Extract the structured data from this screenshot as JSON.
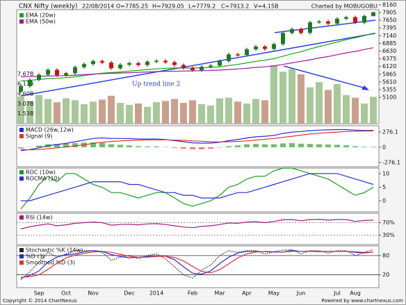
{
  "chart_data": [
    {
      "type": "candlestick",
      "title": "CNX Nifty (weekly)",
      "date": "22/08/2014",
      "quote": [
        "O=7785.25",
        "H=7929.05",
        "L=7779.2",
        "C=7913.2",
        "V=4.15B"
      ],
      "credit": "Charted by MOBUGOBU",
      "annotation": "Up trend line 2",
      "categories": [
        null,
        null,
        "Sep",
        null,
        null,
        "Oct",
        null,
        null,
        "Nov",
        null,
        null,
        null,
        "Dec",
        null,
        null,
        "2014",
        null,
        null,
        null,
        "Feb",
        null,
        null,
        "Mar",
        null,
        null,
        "Apr",
        null,
        null,
        "May",
        null,
        null,
        "Jun",
        null,
        null,
        null,
        "Jul",
        null,
        "Aug",
        null,
        null
      ],
      "open": [
        5290,
        5470,
        5680,
        5850,
        6010,
        5830,
        5900,
        6100,
        6200,
        6300,
        6250,
        6060,
        6180,
        6230,
        6170,
        6280,
        6310,
        6260,
        6170,
        6070,
        6000,
        6110,
        6150,
        6300,
        6520,
        6500,
        6690,
        6780,
        6700,
        6860,
        7230,
        7360,
        7230,
        7580,
        7610,
        7540,
        7700,
        7750,
        7570,
        7785.25
      ],
      "high": [
        5520,
        5730,
        5900,
        6060,
        6060,
        5950,
        6150,
        6250,
        6350,
        6350,
        6300,
        6230,
        6280,
        6280,
        6330,
        6360,
        6360,
        6310,
        6220,
        6120,
        6160,
        6200,
        6350,
        6570,
        6570,
        6740,
        6830,
        6830,
        6910,
        7280,
        7410,
        7410,
        7630,
        7660,
        7660,
        7750,
        7800,
        7800,
        7840,
        7929.05
      ],
      "low": [
        5240,
        5420,
        5630,
        5800,
        5780,
        5780,
        5850,
        6050,
        6150,
        6200,
        6010,
        6010,
        6130,
        6120,
        6120,
        6230,
        6210,
        6120,
        6020,
        5950,
        5950,
        6060,
        6100,
        6250,
        6450,
        6450,
        6640,
        6650,
        6650,
        6810,
        7180,
        7180,
        7180,
        7530,
        7490,
        7490,
        7650,
        7520,
        7520,
        7779.2
      ],
      "close": [
        5470,
        5680,
        5850,
        6010,
        5830,
        5900,
        6100,
        6200,
        6300,
        6250,
        6060,
        6180,
        6230,
        6170,
        6280,
        6310,
        6260,
        6170,
        6070,
        6000,
        6110,
        6150,
        6300,
        6520,
        6500,
        6690,
        6780,
        6700,
        6860,
        7230,
        7360,
        7230,
        7580,
        7610,
        7540,
        7700,
        7750,
        7570,
        7790,
        7913.2
      ],
      "up_color": "#1f7a1f",
      "down_color": "#d01010",
      "series": [
        {
          "name": "EMA (20w)",
          "color": "#16a516",
          "values": [
            5650,
            5660,
            5690,
            5720,
            5730,
            5750,
            5780,
            5820,
            5860,
            5900,
            5920,
            5940,
            5970,
            5990,
            6020,
            6040,
            6060,
            6070,
            6070,
            6070,
            6080,
            6090,
            6110,
            6150,
            6190,
            6240,
            6290,
            6330,
            6380,
            6460,
            6540,
            6610,
            6700,
            6780,
            6850,
            6930,
            7010,
            7070,
            7140,
            7220
          ]
        },
        {
          "name": "EMA (50w)",
          "color": "#9b1a9b",
          "values": [
            5780,
            5785,
            5795,
            5805,
            5810,
            5820,
            5835,
            5850,
            5870,
            5885,
            5895,
            5905,
            5915,
            5925,
            5940,
            5950,
            5960,
            5965,
            5970,
            5975,
            5980,
            5990,
            6000,
            6020,
            6040,
            6060,
            6090,
            6110,
            6140,
            6190,
            6240,
            6290,
            6340,
            6400,
            6450,
            6510,
            6570,
            6620,
            6680,
            6740
          ]
        }
      ],
      "ylim": [
        4230,
        8250
      ],
      "yticks": [
        8160,
        7905,
        7650,
        7395,
        7140,
        6885,
        6630,
        6375,
        6120,
        5865,
        5610,
        5355,
        5100
      ],
      "volume": {
        "values": [
          4.2,
          3.5,
          4.4,
          3.8,
          3.3,
          3.9,
          3.6,
          3.0,
          3.4,
          3.7,
          4.3,
          3.2,
          2.9,
          3.1,
          2.6,
          3.3,
          3.5,
          3.8,
          3.2,
          3.6,
          3.0,
          2.8,
          3.9,
          4.0,
          3.4,
          3.1,
          3.8,
          3.6,
          9.0,
          8.0,
          8.4,
          7.6,
          5.6,
          6.4,
          5.2,
          6.1,
          4.4,
          4.0,
          3.1,
          4.15
        ],
        "up_color": "#a8c89a",
        "down_color": "#c9a08e",
        "ylim": [
          0,
          9.2
        ],
        "yticks": [
          {
            "value": 7.67,
            "label": "7.67B"
          },
          {
            "value": 6.13,
            "label": "6.13B"
          },
          {
            "value": 4.6,
            "label": "4.60B"
          },
          {
            "value": 3.07,
            "label": "3.07B"
          },
          {
            "value": 1.53,
            "label": "1.53B"
          }
        ]
      }
    },
    {
      "type": "line",
      "series": [
        {
          "name": "MACD (26w,12w)",
          "color": "#2a2ad0",
          "values": [
            -60,
            -40,
            -10,
            30,
            50,
            70,
            100,
            130,
            160,
            170,
            160,
            160,
            160,
            150,
            150,
            150,
            140,
            120,
            100,
            80,
            75,
            75,
            90,
            120,
            140,
            170,
            190,
            200,
            215,
            250,
            275,
            285,
            300,
            310,
            315,
            320,
            320,
            310,
            305,
            305
          ]
        },
        {
          "name": "Signal (9)",
          "color": "#e03030",
          "values": [
            -40,
            -45,
            -40,
            -25,
            -10,
            5,
            25,
            45,
            70,
            90,
            105,
            115,
            125,
            130,
            135,
            135,
            135,
            130,
            125,
            115,
            110,
            100,
            95,
            100,
            105,
            115,
            130,
            145,
            160,
            180,
            200,
            220,
            240,
            255,
            265,
            275,
            285,
            290,
            295,
            295
          ]
        }
      ],
      "histogram": {
        "values": [
          -20,
          5,
          30,
          55,
          60,
          65,
          75,
          85,
          90,
          80,
          55,
          45,
          35,
          20,
          15,
          15,
          5,
          -10,
          -25,
          -35,
          -35,
          -25,
          -5,
          20,
          35,
          55,
          60,
          55,
          55,
          70,
          75,
          65,
          60,
          55,
          50,
          45,
          35,
          20,
          10,
          10
        ],
        "up_color": "#6cc06a",
        "down_color": "#e47a70"
      },
      "ylim": [
        -351,
        389
      ],
      "yticks": [
        276.1,
        0,
        -276.1
      ]
    },
    {
      "type": "line",
      "series": [
        {
          "name": "ROC (10w)",
          "color": "#1a9a1a",
          "values": [
            -3,
            1,
            6,
            9,
            7,
            10,
            10,
            8,
            6,
            5,
            3,
            3,
            2,
            1,
            2,
            3,
            3,
            1,
            -1,
            -2,
            -1,
            0,
            2,
            5,
            6,
            8,
            9,
            9,
            11,
            12,
            12,
            11,
            10,
            9,
            8,
            6,
            4,
            2,
            3,
            5
          ]
        },
        {
          "name": "ROCMA (10)",
          "color": "#2a2ad0",
          "values": [
            0,
            0,
            1,
            2,
            3,
            4,
            5,
            6,
            7,
            7,
            7,
            7,
            6,
            6,
            5,
            4,
            3,
            3,
            2,
            2,
            1,
            1,
            1,
            2,
            3,
            3,
            4,
            5,
            6,
            7,
            8,
            9,
            10,
            10,
            10,
            10,
            9,
            8,
            7,
            6
          ]
        }
      ],
      "ylim": [
        -4.1,
        12
      ],
      "yticks": [
        10,
        5,
        0
      ]
    },
    {
      "type": "line",
      "series": [
        {
          "name": "RSI (14w)",
          "color": "#a01a7a",
          "values": [
            50,
            57,
            62,
            66,
            60,
            63,
            68,
            70,
            72,
            70,
            62,
            64,
            65,
            63,
            66,
            67,
            64,
            60,
            56,
            54,
            58,
            60,
            64,
            69,
            68,
            72,
            73,
            70,
            74,
            79,
            80,
            76,
            80,
            81,
            78,
            80,
            80,
            74,
            77,
            78
          ]
        }
      ],
      "ylim": [
        0,
        100
      ],
      "yticks": [
        {
          "value": 70,
          "label": "70%"
        },
        {
          "value": 30,
          "label": "30%"
        }
      ],
      "grid": true,
      "grid_dash": true
    },
    {
      "type": "line",
      "series": [
        {
          "name": "Stochastic %K (14w)",
          "color": "#222222",
          "dash": true,
          "values": [
            5,
            30,
            60,
            90,
            75,
            85,
            95,
            95,
            95,
            90,
            65,
            75,
            80,
            70,
            80,
            85,
            70,
            45,
            20,
            10,
            35,
            50,
            80,
            95,
            90,
            95,
            95,
            85,
            92,
            97,
            98,
            85,
            95,
            95,
            88,
            95,
            95,
            80,
            90,
            98
          ]
        },
        {
          "name": "%D (3)",
          "color": "#2a2ad0",
          "values": [
            10,
            18,
            32,
            60,
            75,
            83,
            85,
            92,
            95,
            93,
            83,
            77,
            73,
            75,
            77,
            78,
            78,
            67,
            45,
            25,
            22,
            32,
            55,
            75,
            88,
            93,
            93,
            92,
            91,
            91,
            96,
            93,
            93,
            92,
            93,
            93,
            93,
            90,
            88,
            91
          ]
        },
        {
          "name": "Smoothed %D (3)",
          "color": "#e03030",
          "values": [
            12,
            14,
            20,
            37,
            56,
            73,
            81,
            87,
            91,
            93,
            90,
            84,
            78,
            75,
            75,
            77,
            78,
            74,
            63,
            46,
            31,
            26,
            36,
            54,
            73,
            85,
            91,
            93,
            92,
            91,
            93,
            93,
            94,
            93,
            93,
            93,
            93,
            92,
            90,
            90
          ]
        }
      ],
      "ylim": [
        -20,
        110
      ],
      "yticks": [
        80,
        20
      ],
      "grid": true
    }
  ],
  "footer": {
    "copyright": "Copyright © 2014 ChartNexus",
    "powered_by": "Powered by www.chartnexus.com"
  }
}
